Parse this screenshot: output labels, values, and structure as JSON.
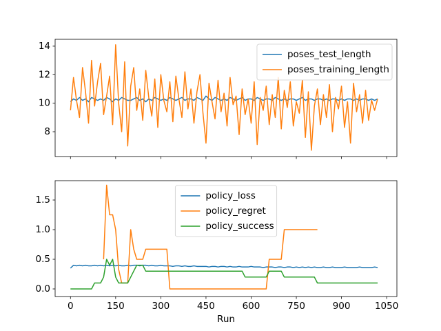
{
  "chart_data": [
    {
      "type": "line",
      "x": [
        0,
        10,
        20,
        30,
        40,
        50,
        60,
        70,
        80,
        90,
        100,
        110,
        120,
        130,
        140,
        150,
        160,
        170,
        180,
        190,
        200,
        210,
        220,
        230,
        240,
        250,
        260,
        270,
        280,
        290,
        300,
        310,
        320,
        330,
        340,
        350,
        360,
        370,
        380,
        390,
        400,
        410,
        420,
        430,
        440,
        450,
        460,
        470,
        480,
        490,
        500,
        510,
        520,
        530,
        540,
        550,
        560,
        570,
        580,
        590,
        600,
        610,
        620,
        630,
        640,
        650,
        660,
        670,
        680,
        690,
        700,
        710,
        720,
        730,
        740,
        750,
        760,
        770,
        780,
        790,
        800,
        810,
        820,
        830,
        840,
        850,
        860,
        870,
        880,
        890,
        900,
        910,
        920,
        930,
        940,
        950,
        960,
        970,
        980,
        990,
        1000,
        1010,
        1020
      ],
      "series": [
        {
          "name": "poses_test_length",
          "color": "#1f77b4",
          "values": [
            10.1,
            10.3,
            10.2,
            10.4,
            10.2,
            10.3,
            10.1,
            10.4,
            10.3,
            10.2,
            10.3,
            10.2,
            10.4,
            10.3,
            10.1,
            10.3,
            10.2,
            10.4,
            10.3,
            10.2,
            10.2,
            10.3,
            10.4,
            10.2,
            10.3,
            10.1,
            10.3,
            10.2,
            10.4,
            10.3,
            10.2,
            10.3,
            10.2,
            10.4,
            10.3,
            10.2,
            10.3,
            10.4,
            10.2,
            10.3,
            10.3,
            10.2,
            10.4,
            10.3,
            10.2,
            10.5,
            10.3,
            10.2,
            10.4,
            10.3,
            10.2,
            10.3,
            10.2,
            10.4,
            10.3,
            10.2,
            10.3,
            10.4,
            10.2,
            10.3,
            10.3,
            10.2,
            10.4,
            10.3,
            10.2,
            10.3,
            10.3,
            10.2,
            10.4,
            10.3,
            10.2,
            10.3,
            10.2,
            10.3,
            10.3,
            10.2,
            10.3,
            10.4,
            10.2,
            10.3,
            10.3,
            10.2,
            10.3,
            10.3,
            10.2,
            10.3,
            10.2,
            10.3,
            10.3,
            10.2,
            10.3,
            10.2,
            10.3,
            10.3,
            10.2,
            10.3,
            10.2,
            10.3,
            10.3,
            10.2,
            10.3,
            10.2,
            10.3
          ]
        },
        {
          "name": "poses_training_length",
          "color": "#ff7f0e",
          "values": [
            9.5,
            11.8,
            10.2,
            9.0,
            12.5,
            10.8,
            8.6,
            13.0,
            9.8,
            11.5,
            12.8,
            9.2,
            10.5,
            11.9,
            8.5,
            14.1,
            10.0,
            8.0,
            12.9,
            7.0,
            11.2,
            12.5,
            9.5,
            11.0,
            8.8,
            12.3,
            10.4,
            9.1,
            11.7,
            8.3,
            12.0,
            10.2,
            9.4,
            11.5,
            8.7,
            11.9,
            10.3,
            9.0,
            12.2,
            9.6,
            11.0,
            8.6,
            10.8,
            12.0,
            9.3,
            7.2,
            11.4,
            10.1,
            8.9,
            11.6,
            9.4,
            10.7,
            8.4,
            11.8,
            9.9,
            10.5,
            7.8,
            11.0,
            9.2,
            10.3,
            8.6,
            11.5,
            7.1,
            10.4,
            9.5,
            11.2,
            8.5,
            10.6,
            9.0,
            11.8,
            8.2,
            10.9,
            9.7,
            11.5,
            8.4,
            10.1,
            9.3,
            11.6,
            7.6,
            10.8,
            6.7,
            9.8,
            11.0,
            8.5,
            10.6,
            9.0,
            11.3,
            8.0,
            10.4,
            9.6,
            11.2,
            8.3,
            10.1,
            7.2,
            11.4,
            9.4,
            10.6,
            8.6,
            10.9,
            8.8,
            10.2,
            9.5,
            10.3
          ]
        }
      ],
      "xlim": [
        -51,
        1084
      ],
      "xticks": [
        0,
        150,
        300,
        450,
        600,
        750,
        900,
        1050
      ],
      "show_xtick_labels": false,
      "ylim": [
        6.26,
        14.48
      ],
      "yticks": [
        8,
        10,
        12,
        14
      ],
      "legend": "upper right"
    },
    {
      "type": "line",
      "x": [
        0,
        10,
        20,
        30,
        40,
        50,
        60,
        70,
        80,
        90,
        100,
        110,
        120,
        130,
        140,
        150,
        160,
        170,
        180,
        190,
        200,
        210,
        220,
        230,
        240,
        250,
        260,
        270,
        280,
        290,
        300,
        310,
        320,
        330,
        340,
        350,
        360,
        370,
        380,
        390,
        400,
        410,
        420,
        430,
        440,
        450,
        460,
        470,
        480,
        490,
        500,
        510,
        520,
        530,
        540,
        550,
        560,
        570,
        580,
        590,
        600,
        610,
        620,
        630,
        640,
        650,
        660,
        670,
        680,
        690,
        700,
        710,
        720,
        730,
        740,
        750,
        760,
        770,
        780,
        790,
        800,
        810,
        820,
        830,
        840,
        850,
        860,
        870,
        880,
        890,
        900,
        910,
        920,
        930,
        940,
        950,
        960,
        970,
        980,
        990,
        1000,
        1010,
        1020
      ],
      "series": [
        {
          "name": "policy_loss",
          "color": "#1f77b4",
          "values": [
            0.35,
            0.4,
            0.39,
            0.4,
            0.39,
            0.4,
            0.39,
            0.39,
            0.4,
            0.39,
            0.4,
            0.39,
            0.4,
            0.39,
            0.4,
            0.39,
            0.4,
            0.39,
            0.39,
            0.4,
            0.39,
            0.4,
            0.4,
            0.39,
            0.4,
            0.4,
            0.39,
            0.4,
            0.39,
            0.39,
            0.4,
            0.39,
            0.39,
            0.39,
            0.38,
            0.39,
            0.39,
            0.38,
            0.39,
            0.38,
            0.38,
            0.39,
            0.38,
            0.38,
            0.38,
            0.38,
            0.37,
            0.38,
            0.38,
            0.37,
            0.38,
            0.38,
            0.37,
            0.38,
            0.37,
            0.37,
            0.38,
            0.37,
            0.37,
            0.37,
            0.38,
            0.37,
            0.37,
            0.37,
            0.36,
            0.37,
            0.37,
            0.37,
            0.36,
            0.37,
            0.37,
            0.36,
            0.37,
            0.37,
            0.36,
            0.37,
            0.36,
            0.37,
            0.36,
            0.37,
            0.36,
            0.37,
            0.36,
            0.36,
            0.37,
            0.36,
            0.36,
            0.37,
            0.36,
            0.36,
            0.36,
            0.37,
            0.36,
            0.36,
            0.36,
            0.36,
            0.37,
            0.36,
            0.36,
            0.36,
            0.36,
            0.37,
            0.36
          ]
        },
        {
          "name": "policy_regret",
          "color": "#ff7f0e",
          "values": [
            null,
            null,
            null,
            null,
            null,
            null,
            null,
            null,
            null,
            null,
            null,
            0.5,
            1.75,
            1.25,
            1.25,
            1.0,
            0.33,
            0.1,
            0.1,
            0.1,
            1.0,
            0.67,
            0.5,
            0.5,
            0.5,
            0.67,
            0.67,
            0.67,
            0.67,
            0.67,
            0.67,
            0.67,
            0.67,
            0,
            0,
            0,
            0,
            0,
            0,
            0,
            0,
            0,
            0,
            0,
            0,
            0,
            0,
            0,
            0,
            0,
            0,
            0,
            0,
            0,
            0,
            0,
            0,
            0,
            0,
            0,
            0,
            0,
            0,
            0,
            0,
            0,
            0.5,
            0.5,
            0.5,
            0.5,
            0.5,
            1.0,
            1.0,
            1.0,
            1.0,
            1.0,
            1.0,
            1.0,
            1.0,
            1.0,
            1.0,
            1.0,
            1.0,
            null,
            null,
            null,
            null,
            null,
            null,
            null,
            null,
            null,
            null,
            null,
            null,
            null,
            null,
            null,
            null,
            null,
            null,
            null,
            null
          ]
        },
        {
          "name": "policy_success",
          "color": "#2ca02c",
          "values": [
            0,
            0,
            0,
            0,
            0,
            0,
            0,
            0,
            0.1,
            0.1,
            0.1,
            0.2,
            0.5,
            0.4,
            0.5,
            0.2,
            0.1,
            0.1,
            0.1,
            0.1,
            0.2,
            0.3,
            0.4,
            0.4,
            0.4,
            0.3,
            0.3,
            0.3,
            0.3,
            0.3,
            0.3,
            0.3,
            0.3,
            0.3,
            0.3,
            0.3,
            0.3,
            0.3,
            0.3,
            0.3,
            0.3,
            0.3,
            0.3,
            0.3,
            0.3,
            0.3,
            0.3,
            0.3,
            0.3,
            0.3,
            0.3,
            0.3,
            0.3,
            0.3,
            0.3,
            0.3,
            0.3,
            0.3,
            0.2,
            0.2,
            0.2,
            0.2,
            0.2,
            0.2,
            0.2,
            0.2,
            0.3,
            0.3,
            0.3,
            0.3,
            0.3,
            0.2,
            0.2,
            0.2,
            0.2,
            0.2,
            0.2,
            0.2,
            0.2,
            0.2,
            0.2,
            0.2,
            0.1,
            0.1,
            0.1,
            0.1,
            0.1,
            0.1,
            0.1,
            0.1,
            0.1,
            0.1,
            0.1,
            0.1,
            0.1,
            0.1,
            0.1,
            0.1,
            0.1,
            0.1,
            0.1,
            0.1,
            0.1
          ]
        }
      ],
      "xlim": [
        -51,
        1084
      ],
      "xticks": [
        0,
        150,
        300,
        450,
        600,
        750,
        900,
        1050
      ],
      "show_xtick_labels": true,
      "xlabel": "Run",
      "ylim": [
        -0.128,
        1.826
      ],
      "yticks": [
        {
          "value": 0,
          "label": "0.0"
        },
        0.5,
        {
          "value": 1,
          "label": "1.0"
        },
        1.5
      ],
      "legend": "upper center"
    }
  ]
}
